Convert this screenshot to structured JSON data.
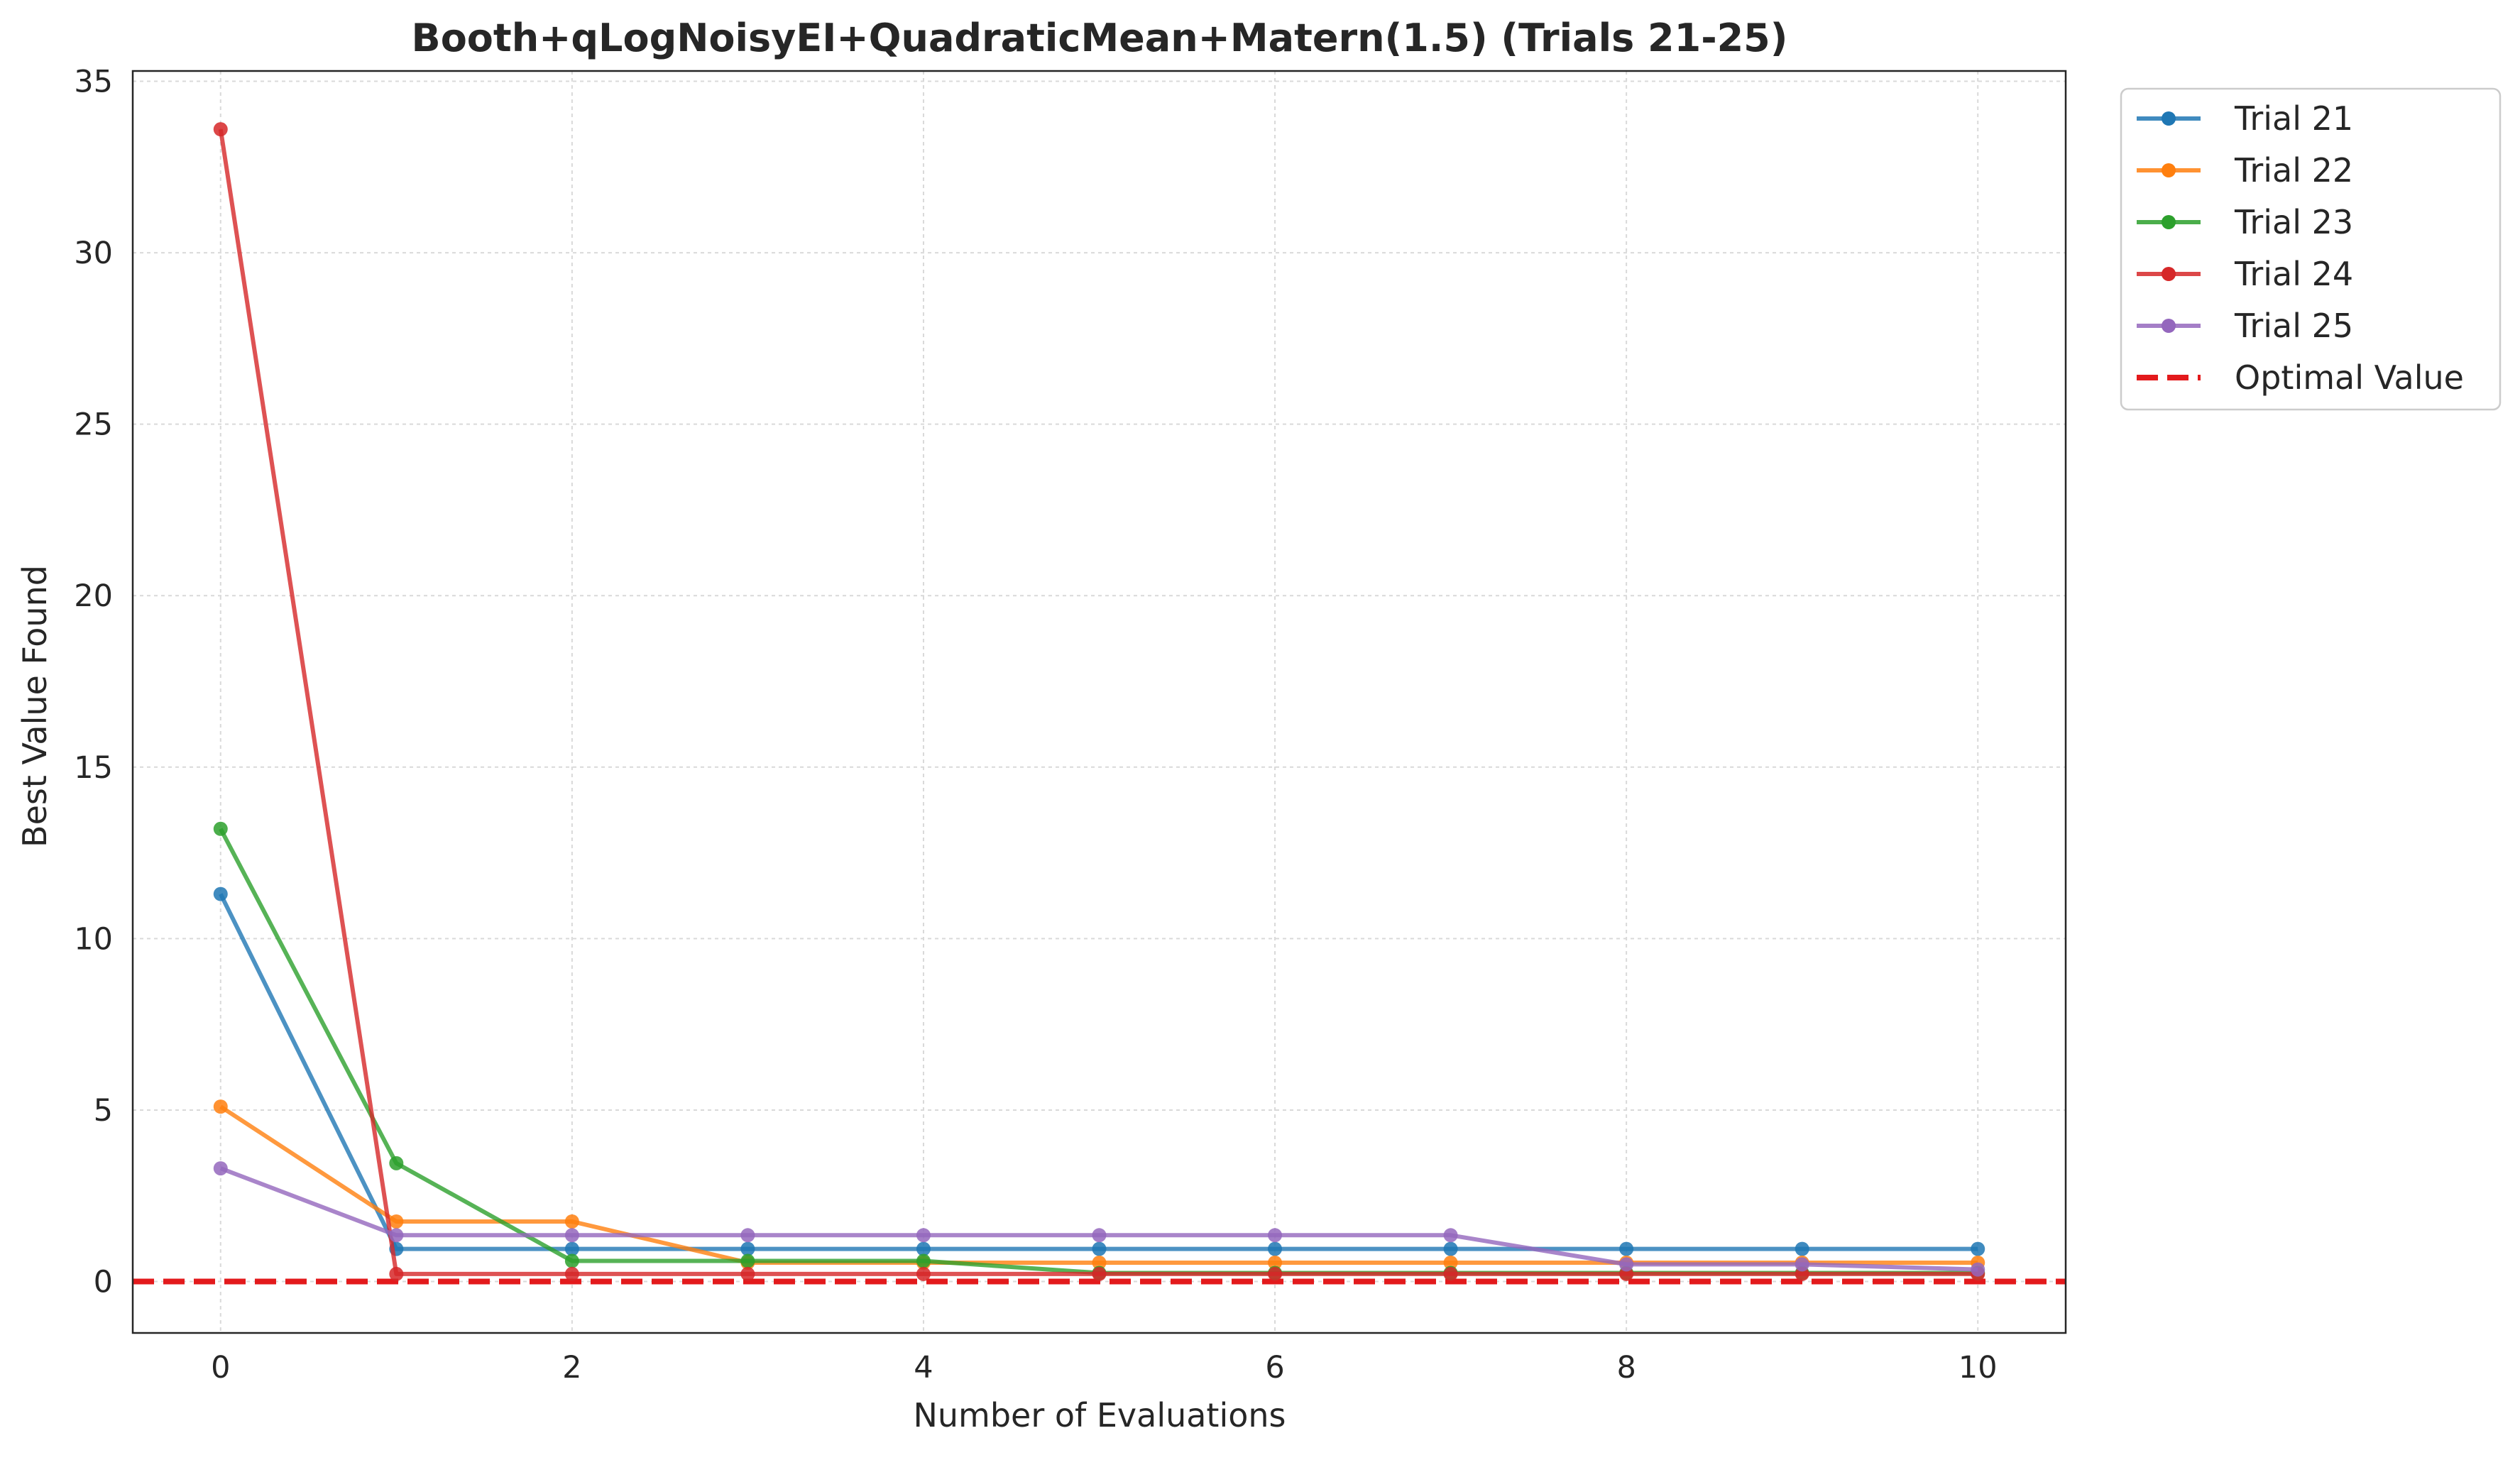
{
  "chart_data": {
    "type": "line",
    "title": "Booth+qLogNoisyEI+QuadraticMean+Matern(1.5) (Trials 21-25)",
    "xlabel": "Number of Evaluations",
    "ylabel": "Best Value Found",
    "xlim": [
      -0.5,
      10.5
    ],
    "ylim": [
      -1.5,
      35.3
    ],
    "xticks": [
      0,
      2,
      4,
      6,
      8,
      10
    ],
    "yticks": [
      0,
      5,
      10,
      15,
      20,
      25,
      30,
      35
    ],
    "grid": true,
    "legend_position": "outside-top-right",
    "x": [
      0,
      1,
      2,
      3,
      4,
      5,
      6,
      7,
      8,
      9,
      10
    ],
    "series": [
      {
        "name": "Trial 21",
        "color": "#1f77b4",
        "values": [
          11.3,
          0.95,
          0.95,
          0.95,
          0.95,
          0.95,
          0.95,
          0.95,
          0.95,
          0.95,
          0.95
        ]
      },
      {
        "name": "Trial 22",
        "color": "#ff7f0e",
        "values": [
          5.1,
          1.75,
          1.75,
          0.55,
          0.55,
          0.55,
          0.55,
          0.55,
          0.55,
          0.55,
          0.55
        ]
      },
      {
        "name": "Trial 23",
        "color": "#2ca02c",
        "values": [
          13.2,
          3.45,
          0.6,
          0.6,
          0.6,
          0.25,
          0.25,
          0.25,
          0.25,
          0.25,
          0.25
        ]
      },
      {
        "name": "Trial 24",
        "color": "#d62728",
        "values": [
          33.6,
          0.22,
          0.22,
          0.22,
          0.22,
          0.22,
          0.22,
          0.22,
          0.22,
          0.22,
          0.22
        ]
      },
      {
        "name": "Trial 25",
        "color": "#9467bd",
        "values": [
          3.3,
          1.35,
          1.35,
          1.35,
          1.35,
          1.35,
          1.35,
          1.35,
          0.5,
          0.5,
          0.35
        ]
      }
    ],
    "reference_line": {
      "name": "Optimal Value",
      "value": 0,
      "color": "#e31a1c",
      "style": "dashed"
    }
  }
}
